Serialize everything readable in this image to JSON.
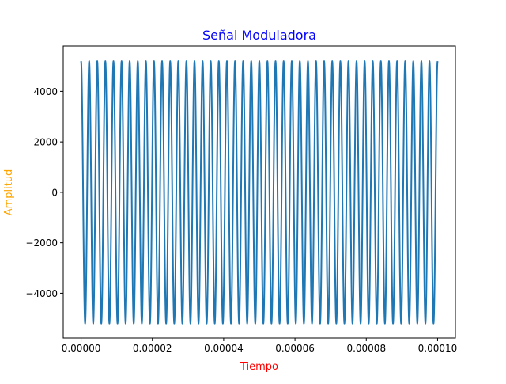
{
  "chart_data": {
    "type": "line",
    "title": "Señal Moduladora",
    "xlabel": "Tiempo",
    "ylabel": "Amplitud",
    "xlim": [
      -5e-06,
      0.000105
    ],
    "ylim": [
      -5775,
      5800
    ],
    "x_ticks": [
      0,
      2e-05,
      4e-05,
      6e-05,
      8e-05,
      0.0001
    ],
    "x_tick_labels": [
      "0.00000",
      "0.00002",
      "0.00004",
      "0.00006",
      "0.00008",
      "0.00010"
    ],
    "y_ticks": [
      -4000,
      -2000,
      0,
      2000,
      4000
    ],
    "y_tick_labels": [
      "−4000",
      "−2000",
      "0",
      "2000",
      "4000"
    ],
    "grid": false,
    "series": [
      {
        "signal": "cosine",
        "amplitude": 5200,
        "frequency_hz": 440000,
        "cycles": 44,
        "x_start": 0,
        "x_end": 0.0001,
        "color": "#1f77b4"
      }
    ]
  },
  "colors": {
    "title": "#0000ff",
    "xlabel": "#ff0000",
    "ylabel": "#ffa500",
    "series": "#1f77b4"
  }
}
